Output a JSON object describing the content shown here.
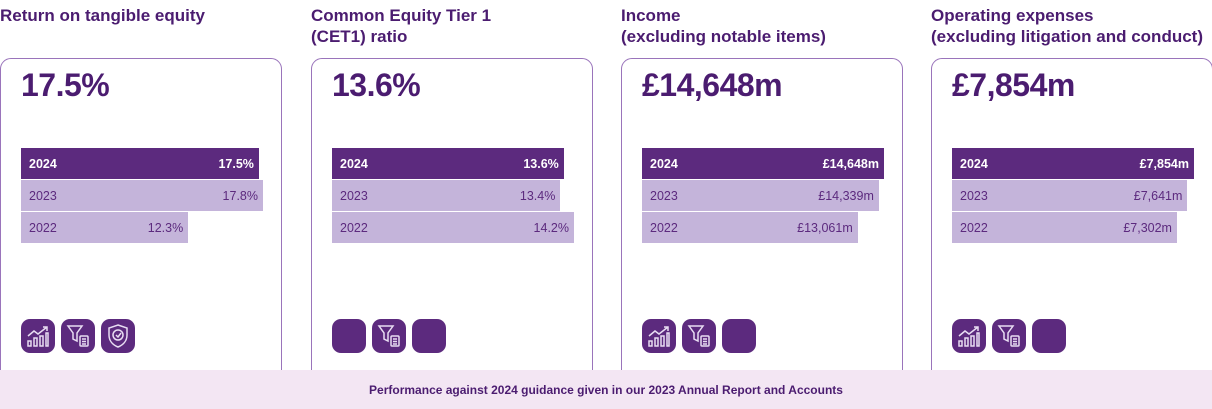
{
  "cards": [
    {
      "title": "Return on tangible equity",
      "value": "17.5%",
      "bars": [
        {
          "year": "2024",
          "label": "17.5%",
          "v": 17.5
        },
        {
          "year": "2023",
          "label": "17.8%",
          "v": 17.8
        },
        {
          "year": "2022",
          "label": "12.3%",
          "v": 12.3
        }
      ],
      "icons": [
        "chart-growth-icon",
        "filter-list-icon",
        "shield-check-icon"
      ]
    },
    {
      "title": "Common Equity Tier 1\n(CET1) ratio",
      "value": "13.6%",
      "bars": [
        {
          "year": "2024",
          "label": "13.6%",
          "v": 13.6
        },
        {
          "year": "2023",
          "label": "13.4%",
          "v": 13.4
        },
        {
          "year": "2022",
          "label": "14.2%",
          "v": 14.2
        }
      ],
      "icons": [
        "blank-icon",
        "filter-list-icon",
        "blank-icon"
      ]
    },
    {
      "title": "Income\n(excluding notable items)",
      "value": "£14,648m",
      "bars": [
        {
          "year": "2024",
          "label": "£14,648m",
          "v": 14648
        },
        {
          "year": "2023",
          "label": "£14,339m",
          "v": 14339
        },
        {
          "year": "2022",
          "label": "£13,061m",
          "v": 13061
        }
      ],
      "icons": [
        "chart-growth-icon",
        "filter-list-icon",
        "blank-icon"
      ]
    },
    {
      "title": "Operating expenses\n(excluding litigation and conduct)",
      "value": "£7,854m",
      "bars": [
        {
          "year": "2024",
          "label": "£7,854m",
          "v": 7854
        },
        {
          "year": "2023",
          "label": "£7,641m",
          "v": 7641
        },
        {
          "year": "2022",
          "label": "£7,302m",
          "v": 7302
        }
      ],
      "icons": [
        "chart-growth-icon",
        "filter-list-icon",
        "blank-icon"
      ]
    }
  ],
  "footer": "Performance against 2024 guidance given in our 2023 Annual Report and Accounts",
  "colors": {
    "primary": "#5c2a7e",
    "light_bar": "#c4b4da",
    "footer_bg": "#f3e6f3"
  }
}
